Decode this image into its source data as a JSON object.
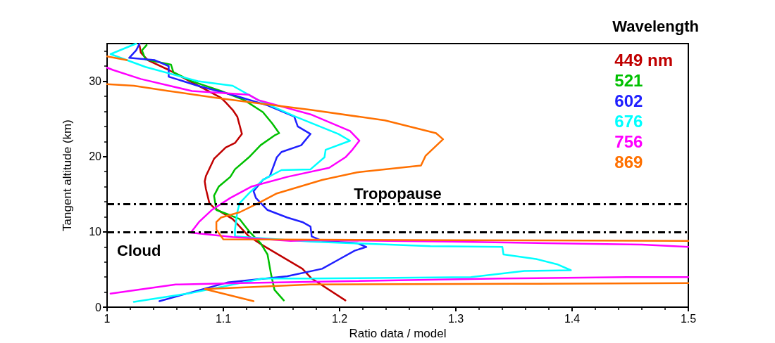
{
  "chart_data": {
    "type": "line",
    "xlabel": "Ratio data / model",
    "ylabel": "Tangent altitude (km)",
    "legend_title": "Wavelength",
    "legend": "top right",
    "grid": false,
    "marker": "none",
    "line_style": "solid",
    "xlim": [
      1,
      1.5
    ],
    "xticks": [
      1,
      1.1,
      1.2,
      1.3,
      1.4,
      1.5
    ],
    "ylim": [
      0,
      35
    ],
    "yticks": [
      0,
      10,
      20,
      30
    ],
    "series": [
      {
        "name": "449 nm",
        "color": "#c00000",
        "x": [
          1.205,
          1.176,
          1.168,
          1.146,
          1.134,
          1.122,
          1.108,
          1.092,
          1.088,
          1.085,
          1.084,
          1.085,
          1.092,
          1.102,
          1.11,
          1.116,
          1.112,
          1.108,
          1.102,
          1.098,
          1.053,
          1.035,
          1.029,
          1.028
        ],
        "values": [
          0.9,
          3.8,
          5.1,
          7.1,
          8.2,
          9.4,
          11.7,
          13.2,
          13.8,
          15.7,
          16.7,
          17.4,
          19.7,
          21.2,
          21.8,
          23.0,
          25.3,
          26.2,
          27.2,
          27.8,
          31.5,
          32.8,
          33.8,
          34.7
        ]
      },
      {
        "name": "521",
        "color": "#00c000",
        "x": [
          1.152,
          1.144,
          1.141,
          1.138,
          1.132,
          1.122,
          1.114,
          1.106,
          1.094,
          1.092,
          1.096,
          1.106,
          1.11,
          1.122,
          1.132,
          1.144,
          1.148,
          1.142,
          1.134,
          1.118,
          1.098,
          1.073,
          1.057,
          1.055,
          1.033,
          1.03,
          1.034
        ],
        "values": [
          0.9,
          2.3,
          4.4,
          7.0,
          8.5,
          10.1,
          11.7,
          12.2,
          12.9,
          14.8,
          16.0,
          17.3,
          18.3,
          19.9,
          21.5,
          22.8,
          23.1,
          24.4,
          25.9,
          27.5,
          28.7,
          30.0,
          31.2,
          32.2,
          32.9,
          34.1,
          34.8
        ]
      },
      {
        "name": "602",
        "color": "#2020ff",
        "x": [
          1.045,
          1.104,
          1.155,
          1.185,
          1.199,
          1.213,
          1.223,
          1.215,
          1.185,
          1.176,
          1.175,
          1.168,
          1.155,
          1.138,
          1.128,
          1.126,
          1.134,
          1.14,
          1.146,
          1.15,
          1.167,
          1.175,
          1.164,
          1.161,
          1.138,
          1.11,
          1.078,
          1.053,
          1.053,
          1.041,
          1.019,
          1.025,
          1.028
        ],
        "values": [
          0.8,
          3.3,
          4.1,
          5.1,
          6.3,
          7.5,
          8.0,
          8.5,
          8.8,
          9.4,
          10.7,
          11.3,
          11.9,
          12.9,
          14.5,
          15.4,
          16.9,
          17.4,
          19.9,
          20.6,
          21.5,
          23.0,
          24.0,
          25.3,
          26.8,
          28.1,
          29.4,
          30.6,
          32.0,
          32.8,
          33.1,
          34.1,
          35.0
        ]
      },
      {
        "name": "676",
        "color": "#00ffff",
        "x": [
          1.023,
          1.073,
          1.134,
          1.175,
          1.313,
          1.359,
          1.399,
          1.387,
          1.369,
          1.341,
          1.34,
          1.278,
          1.175,
          1.11,
          1.11,
          1.112,
          1.114,
          1.122,
          1.134,
          1.15,
          1.175,
          1.187,
          1.188,
          1.209,
          1.199,
          1.162,
          1.13,
          1.108,
          1.078,
          1.033,
          1.003,
          1.025
        ],
        "values": [
          0.7,
          1.9,
          3.8,
          3.8,
          4.0,
          4.8,
          4.9,
          5.7,
          6.4,
          7.0,
          8.0,
          8.1,
          8.7,
          9.4,
          10.3,
          12.6,
          13.8,
          15.1,
          16.9,
          18.2,
          18.3,
          19.9,
          20.9,
          22.1,
          23.0,
          25.3,
          27.5,
          29.4,
          30.0,
          31.9,
          33.6,
          35.0
        ]
      },
      {
        "name": "756",
        "color": "#ff00ff",
        "x": [
          1.003,
          1.059,
          1.114,
          1.339,
          1.447,
          1.5,
          null,
          1.5,
          1.46,
          1.378,
          1.296,
          1.175,
          1.158,
          1.108,
          1.072,
          1.079,
          1.09,
          1.106,
          1.124,
          1.155,
          1.191,
          1.205,
          1.211,
          1.217,
          1.209,
          1.175,
          1.13,
          1.122,
          1.073,
          1.029,
          1.005,
          1.0
        ],
        "values": [
          1.8,
          3.0,
          3.2,
          3.8,
          4.0,
          4.0,
          null,
          8.0,
          8.3,
          8.5,
          8.7,
          8.9,
          8.8,
          9.3,
          9.9,
          11.3,
          12.9,
          14.5,
          16.0,
          17.3,
          18.5,
          19.9,
          20.9,
          22.1,
          23.4,
          25.6,
          27.5,
          28.2,
          28.7,
          30.3,
          31.5,
          31.8
        ]
      },
      {
        "name": "869",
        "color": "#ff7000",
        "x": [
          1.126,
          1.084,
          1.175,
          1.35,
          1.5,
          null,
          1.5,
          1.3,
          1.1,
          1.094,
          1.094,
          1.098,
          1.114,
          1.13,
          1.146,
          1.185,
          1.215,
          1.27,
          1.274,
          1.289,
          1.283,
          1.239,
          1.175,
          1.134,
          1.094,
          1.053,
          1.023,
          1.0,
          null,
          1.0,
          1.017
        ],
        "values": [
          0.8,
          2.4,
          3.0,
          3.1,
          3.2,
          null,
          8.8,
          8.9,
          9.0,
          10.3,
          11.3,
          11.9,
          12.6,
          13.8,
          15.1,
          16.9,
          17.9,
          18.8,
          20.1,
          22.3,
          23.1,
          24.8,
          26.2,
          27.0,
          27.8,
          28.7,
          29.4,
          29.6,
          null,
          33.3,
          32.8
        ]
      }
    ],
    "ref_lines": [
      {
        "axis": "y",
        "value": 13.7,
        "label": "Tropopause",
        "color": "#000000",
        "line_style": "dashed"
      },
      {
        "axis": "y",
        "value": 10,
        "label": "Cloud",
        "color": "#000000",
        "line_style": "dashed"
      }
    ]
  }
}
